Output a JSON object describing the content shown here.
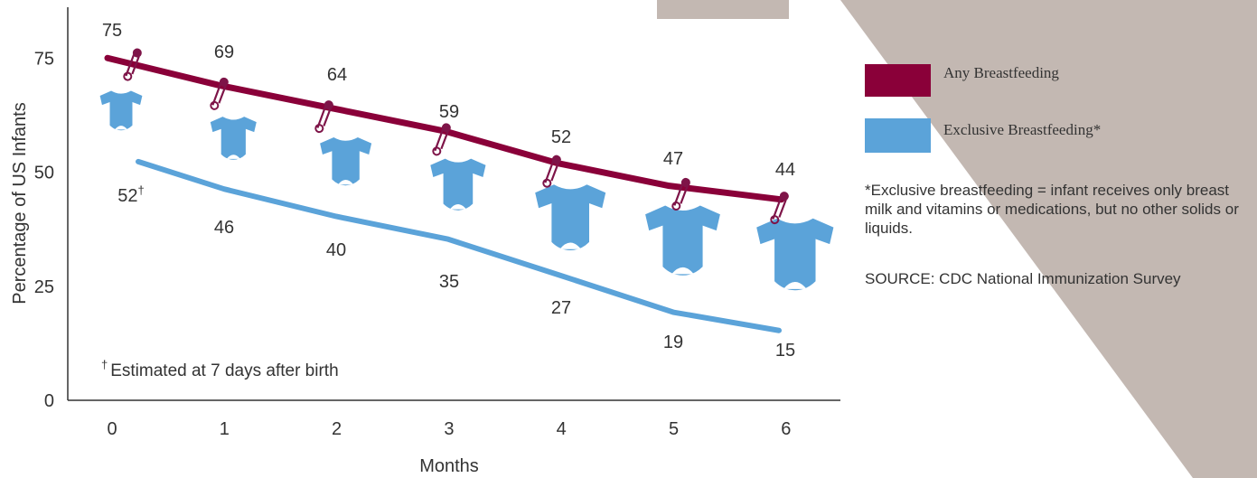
{
  "colors": {
    "any": "#8a0039",
    "exclusive": "#5ba3d9",
    "decor": "#c3b8b2",
    "axis": "#333333",
    "pin": "#7e1448"
  },
  "chart_data": {
    "type": "line",
    "xlabel": "Months",
    "ylabel": "Percentage of US Infants",
    "x": [
      0,
      1,
      2,
      3,
      4,
      5,
      6
    ],
    "xticks": [
      "0",
      "1",
      "2",
      "3",
      "4",
      "5",
      "6"
    ],
    "ylim": [
      0,
      85
    ],
    "yticks": [
      0,
      25,
      50,
      75
    ],
    "grid": false,
    "legend_position": "right",
    "series": [
      {
        "name": "Any Breastfeeding",
        "values": [
          75,
          69,
          64,
          59,
          52,
          47,
          44
        ],
        "labels": [
          "75",
          "69",
          "64",
          "59",
          "52",
          "47",
          "44"
        ]
      },
      {
        "name": "Exclusive Breastfeeding*",
        "values": [
          52,
          46,
          40,
          35,
          27,
          19,
          15
        ],
        "labels": [
          "52",
          "46",
          "40",
          "35",
          "27",
          "19",
          "15"
        ],
        "first_label_marker": "†"
      }
    ],
    "annotation": {
      "marker": "†",
      "text": "Estimated at 7 days after birth"
    }
  },
  "notes": {
    "footnote": "*Exclusive breastfeeding = infant receives only breast milk and vitamins or medications, but no other solids or liquids.",
    "source": "SOURCE: CDC National Immunization Survey"
  }
}
